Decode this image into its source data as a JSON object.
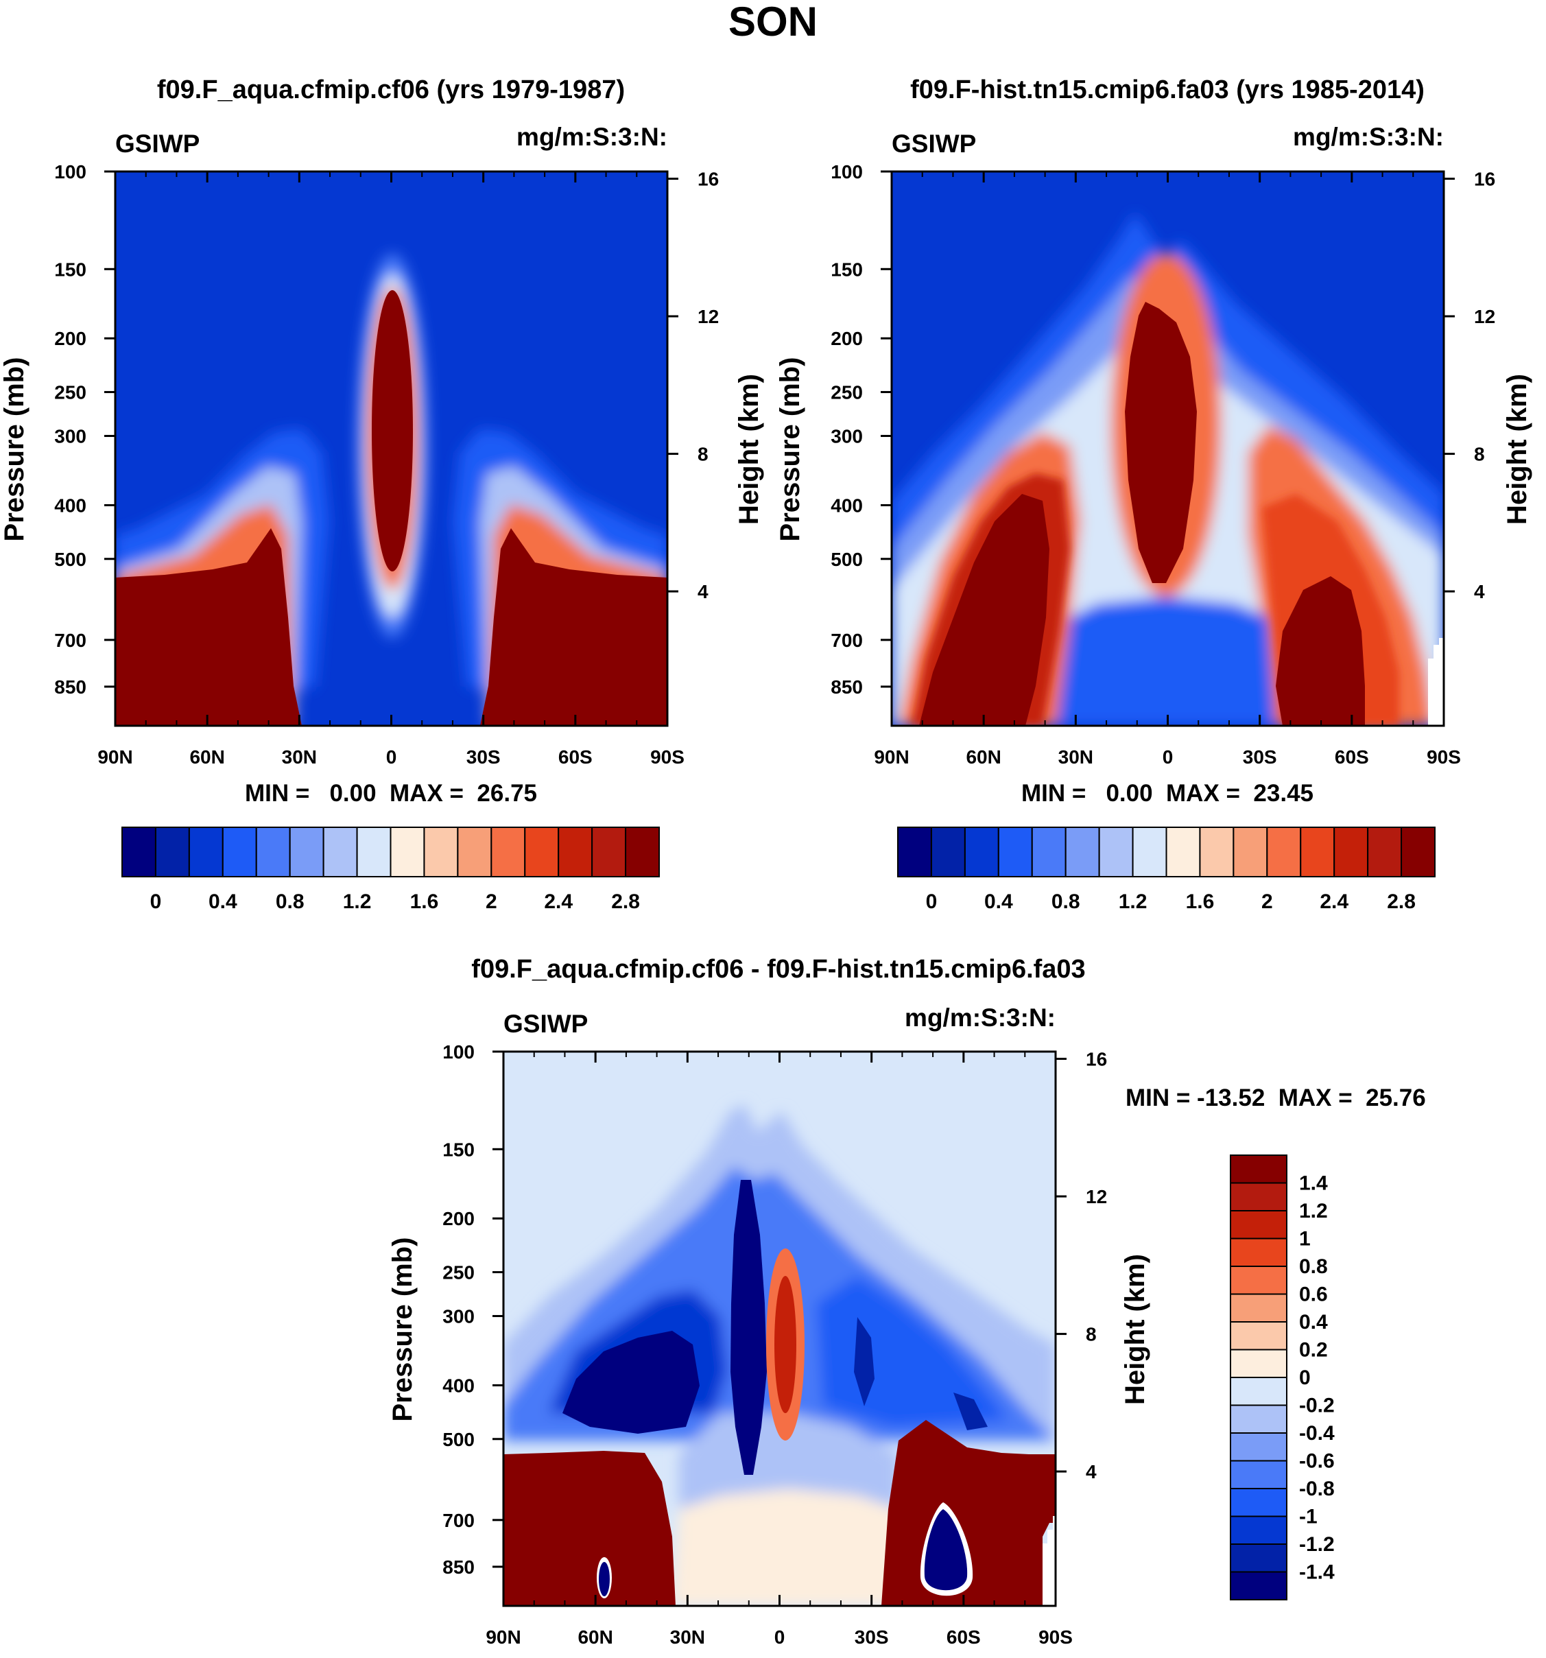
{
  "figure_title": "SON",
  "colors": {
    "seq": [
      "#00007f",
      "#0222a8",
      "#0538d2",
      "#1e5bf6",
      "#4a7af8",
      "#7a9cf7",
      "#adc2f7",
      "#d8e7fa",
      "#fdeede",
      "#fbc9ab",
      "#f79f78",
      "#f56f45",
      "#e8451d",
      "#c42009",
      "#b31b0f",
      "#860000"
    ],
    "diff": [
      "#00007f",
      "#0222a8",
      "#0538d2",
      "#1e5bf6",
      "#4a7af8",
      "#7a9cf7",
      "#adc2f7",
      "#d8e7fa",
      "#fdeede",
      "#fbc9ab",
      "#f79f78",
      "#f56f45",
      "#e8451d",
      "#c42009",
      "#b31b0f",
      "#860000"
    ]
  },
  "chart_data": [
    {
      "type": "heatmap",
      "id": "panel-a",
      "title": "f09.F_aqua.cfmip.cf06 (yrs 1979-1987)",
      "left_label": "GSIWP",
      "right_label": "mg/m:S:3:N:",
      "ylabel": "Pressure (mb)",
      "ylabel_right": "Height (km)",
      "x_ticklabels": [
        "90N",
        "60N",
        "30N",
        "0",
        "30S",
        "60S",
        "90S"
      ],
      "y_ticklabels": [
        "100",
        "150",
        "200",
        "250",
        "300",
        "400",
        "500",
        "700",
        "850"
      ],
      "y_right_ticklabels": [
        "16",
        "12",
        "8",
        "4"
      ],
      "ylim": [
        100,
        1000
      ],
      "stats": "MIN =   0.00  MAX =  26.75",
      "colorbar_ticklabels": [
        "0",
        "0.4",
        "0.8",
        "1.2",
        "1.6",
        "2",
        "2.4",
        "2.8"
      ],
      "colorbar_levels": [
        0,
        0.2,
        0.4,
        0.6,
        0.8,
        1.0,
        1.2,
        1.4,
        1.6,
        1.8,
        2.0,
        2.2,
        2.4,
        2.6,
        2.8
      ]
    },
    {
      "type": "heatmap",
      "id": "panel-b",
      "title": "f09.F-hist.tn15.cmip6.fa03 (yrs 1985-2014)",
      "left_label": "GSIWP",
      "right_label": "mg/m:S:3:N:",
      "ylabel": "Pressure (mb)",
      "ylabel_right": "Height (km)",
      "x_ticklabels": [
        "90N",
        "60N",
        "30N",
        "0",
        "30S",
        "60S",
        "90S"
      ],
      "y_ticklabels": [
        "100",
        "150",
        "200",
        "250",
        "300",
        "400",
        "500",
        "700",
        "850"
      ],
      "y_right_ticklabels": [
        "16",
        "12",
        "8",
        "4"
      ],
      "ylim": [
        100,
        1000
      ],
      "stats": "MIN =   0.00  MAX =  23.45",
      "colorbar_ticklabels": [
        "0",
        "0.4",
        "0.8",
        "1.2",
        "1.6",
        "2",
        "2.4",
        "2.8"
      ],
      "colorbar_levels": [
        0,
        0.2,
        0.4,
        0.6,
        0.8,
        1.0,
        1.2,
        1.4,
        1.6,
        1.8,
        2.0,
        2.2,
        2.4,
        2.6,
        2.8
      ]
    },
    {
      "type": "heatmap",
      "id": "panel-c",
      "title": "f09.F_aqua.cfmip.cf06 - f09.F-hist.tn15.cmip6.fa03",
      "left_label": "GSIWP",
      "right_label": "mg/m:S:3:N:",
      "ylabel": "Pressure (mb)",
      "ylabel_right": "Height (km)",
      "x_ticklabels": [
        "90N",
        "60N",
        "30N",
        "0",
        "30S",
        "60S",
        "90S"
      ],
      "y_ticklabels": [
        "100",
        "150",
        "200",
        "250",
        "300",
        "400",
        "500",
        "700",
        "850"
      ],
      "y_right_ticklabels": [
        "16",
        "12",
        "8",
        "4"
      ],
      "ylim": [
        100,
        1000
      ],
      "stats": "MIN = -13.52  MAX =  25.76",
      "colorbar_ticklabels": [
        "1.4",
        "1.2",
        "1",
        "0.8",
        "0.6",
        "0.4",
        "0.2",
        "0",
        "-0.2",
        "-0.4",
        "-0.6",
        "-0.8",
        "-1",
        "-1.2",
        "-1.4"
      ],
      "colorbar_levels": [
        -1.4,
        -1.2,
        -1,
        -0.8,
        -0.6,
        -0.4,
        -0.2,
        0,
        0.2,
        0.4,
        0.6,
        0.8,
        1,
        1.2,
        1.4
      ]
    }
  ]
}
